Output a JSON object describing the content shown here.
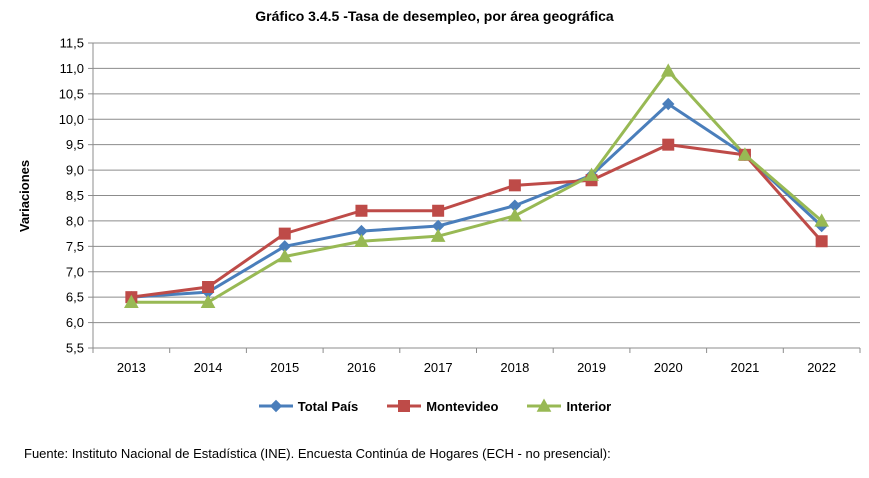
{
  "chart_data": {
    "type": "line",
    "title": "Gráfico 3.4.5 -Tasa de desempleo, por área geográfica",
    "xlabel": "",
    "ylabel": "Variaciones",
    "ylim": [
      5.5,
      11.5
    ],
    "ytick_step": 0.5,
    "ytick_labels": [
      "5,5",
      "6,0",
      "6,5",
      "7,0",
      "7,5",
      "8,0",
      "8,5",
      "9,0",
      "9,5",
      "10,0",
      "10,5",
      "11,0",
      "11,5"
    ],
    "categories": [
      "2013",
      "2014",
      "2015",
      "2016",
      "2017",
      "2018",
      "2019",
      "2020",
      "2021",
      "2022"
    ],
    "grid": true,
    "legend_position": "bottom",
    "series": [
      {
        "name": "Total País",
        "color": "#4a7ebb",
        "marker": "diamond",
        "values": [
          6.5,
          6.6,
          7.5,
          7.8,
          7.9,
          8.3,
          8.9,
          10.3,
          9.3,
          7.9
        ]
      },
      {
        "name": "Montevideo",
        "color": "#be4b48",
        "marker": "square",
        "values": [
          6.5,
          6.7,
          7.75,
          8.2,
          8.2,
          8.7,
          8.8,
          9.5,
          9.3,
          7.6
        ]
      },
      {
        "name": "Interior",
        "color": "#98b954",
        "marker": "triangle",
        "values": [
          6.4,
          6.4,
          7.3,
          7.6,
          7.7,
          8.1,
          8.9,
          10.95,
          9.3,
          8.0
        ]
      }
    ]
  },
  "source_note": "Fuente: Instituto Nacional de Estadística (INE). Encuesta Continúa de Hogares (ECH - no presencial):"
}
